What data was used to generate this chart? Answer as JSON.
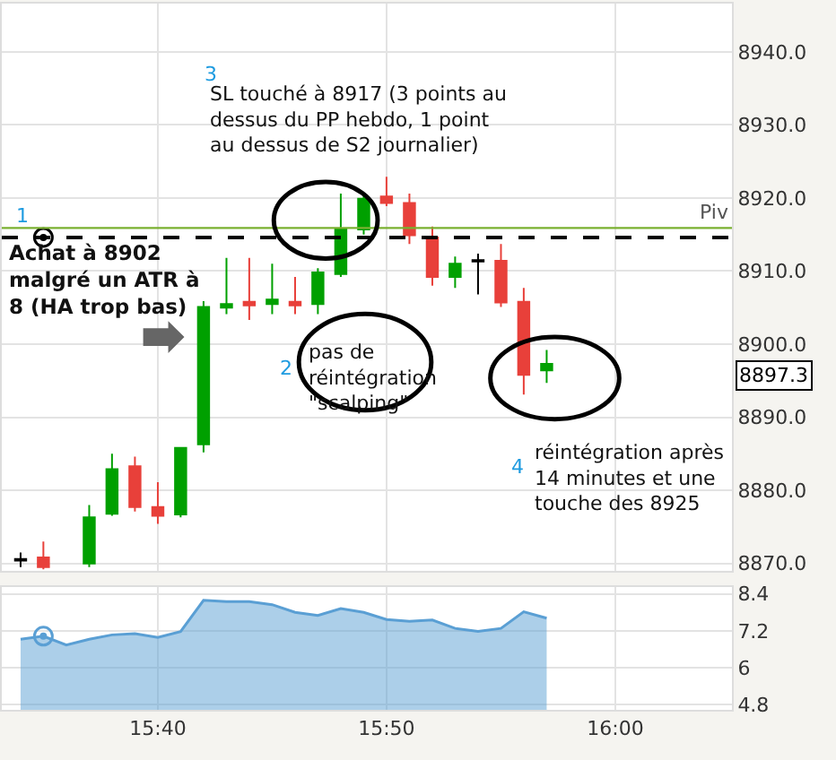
{
  "chart_data": [
    {
      "type": "candlestick",
      "x": [
        15.5667,
        15.5833,
        15.6167,
        15.6333,
        15.65,
        15.6667,
        15.6833,
        15.7,
        15.7167,
        15.7333,
        15.75,
        15.7667,
        15.7833,
        15.8,
        15.8167,
        15.8333,
        15.85,
        15.8667,
        15.8833,
        15.9,
        15.9167,
        15.9333,
        15.95
      ],
      "ohlc": [
        [
          8870.4,
          8871.5,
          8869.5,
          8870.6
        ],
        [
          8870.8,
          8873.0,
          8869.2,
          8869.5
        ],
        [
          8870.0,
          8878.0,
          8869.5,
          8876.3
        ],
        [
          8876.8,
          8885.0,
          8876.5,
          8882.9
        ],
        [
          8883.3,
          8884.6,
          8877.1,
          8877.7
        ],
        [
          8877.7,
          8881.1,
          8875.4,
          8876.5
        ],
        [
          8876.7,
          8885.8,
          8876.3,
          8885.8
        ],
        [
          8886.3,
          8905.9,
          8885.2,
          8905.1
        ],
        [
          8905.0,
          8911.8,
          8904.1,
          8905.5
        ],
        [
          8905.8,
          8911.8,
          8903.3,
          8905.3
        ],
        [
          8905.5,
          8911.0,
          8904.1,
          8906.1
        ],
        [
          8905.8,
          8909.2,
          8904.1,
          8905.3
        ],
        [
          8905.5,
          8910.4,
          8904.1,
          8909.8
        ],
        [
          8909.6,
          8920.6,
          8909.2,
          8915.7
        ],
        [
          8915.7,
          8920.6,
          8915.0,
          8919.9
        ],
        [
          8920.2,
          8922.9,
          8918.9,
          8919.3
        ],
        [
          8919.3,
          8920.6,
          8913.7,
          8914.9
        ],
        [
          8914.6,
          8916.1,
          8908.0,
          8909.2
        ],
        [
          8909.2,
          8912.0,
          8907.7,
          8911.0
        ],
        [
          8911.3,
          8912.4,
          8906.8,
          8911.5
        ],
        [
          8911.4,
          8913.7,
          8905.1,
          8905.7
        ],
        [
          8905.8,
          8907.7,
          8893.1,
          8895.8
        ],
        [
          8896.4,
          8899.2,
          8894.7,
          8897.3
        ]
      ],
      "colors": [
        "#000000",
        "#e8403a",
        "#00a000",
        "#00a000",
        "#e8403a",
        "#e8403a",
        "#00a000",
        "#00a000",
        "#00a000",
        "#e8403a",
        "#00a000",
        "#e8403a",
        "#00a000",
        "#00a000",
        "#00a000",
        "#e8403a",
        "#e8403a",
        "#e8403a",
        "#00a000",
        "#000000",
        "#e8403a",
        "#e8403a",
        "#00a000"
      ],
      "series": [
        {
          "type": "scatter",
          "x": [
            15.5833
          ],
          "values": [
            8914.6
          ],
          "color": "#000000",
          "marker": "circle"
        }
      ],
      "xlim": [
        15.553,
        16.085
      ],
      "xticks": [
        {
          "value": 15.6667,
          "label": null
        },
        {
          "value": 15.8333,
          "label": null
        },
        {
          "value": 16.0,
          "label": null
        }
      ],
      "ylim": [
        8869.0,
        8946.6
      ],
      "yticks": [
        {
          "value": 8870,
          "label": "8870.0"
        },
        {
          "value": 8880,
          "label": "8880.0"
        },
        {
          "value": 8890,
          "label": "8890.0"
        },
        {
          "value": 8900,
          "label": "8900.0"
        },
        {
          "value": 8910,
          "label": "8910.0"
        },
        {
          "value": 8920,
          "label": "8920.0"
        },
        {
          "value": 8930,
          "label": "8930.0"
        },
        {
          "value": 8940,
          "label": "8940.0"
        }
      ],
      "tick_labels": "y",
      "grid": true,
      "ref_lines": [
        {
          "axis": "y",
          "value": 8915.9,
          "label": "Piv",
          "color": "#7ab030",
          "line_style": "solid"
        },
        {
          "axis": "y",
          "value": 8914.6,
          "color": "#000000",
          "line_style": "dashed"
        }
      ],
      "annotations": [
        "1",
        "Achat à 8902\nmalgré un ATR à\n8 (HA trop bas)",
        "2",
        "pas de\nréintégration\n\"scalping\"",
        "3",
        "SL touché à 8917 (3 points au\ndessus du PP hebdo, 1 point\nau dessus de S2 journalier)",
        "4",
        "réintégration après\n14 minutes et une\ntouche des 8925",
        "8897.3"
      ]
    },
    {
      "type": "area",
      "x": [
        15.5667,
        15.5833,
        15.6,
        15.6167,
        15.6333,
        15.65,
        15.6667,
        15.6833,
        15.7,
        15.7167,
        15.7333,
        15.75,
        15.7667,
        15.7833,
        15.8,
        15.8167,
        15.8333,
        15.85,
        15.8667,
        15.8833,
        15.9,
        15.9167,
        15.9333,
        15.95
      ],
      "series": [
        {
          "type": "area",
          "color": "#5a9fd4",
          "values": [
            6.93,
            7.03,
            6.74,
            6.93,
            7.07,
            7.11,
            6.99,
            7.18,
            8.19,
            8.15,
            8.15,
            8.05,
            7.8,
            7.7,
            7.92,
            7.8,
            7.57,
            7.51,
            7.55,
            7.28,
            7.18,
            7.28,
            7.82,
            7.61
          ]
        },
        {
          "type": "scatter",
          "x": [
            15.5833
          ],
          "values": [
            7.03
          ],
          "color": "#5a9fd4",
          "marker": "circle"
        }
      ],
      "xlim": [
        15.553,
        16.085
      ],
      "xticks": [
        {
          "value": 15.6667,
          "label": "15:40"
        },
        {
          "value": 15.8333,
          "label": "15:50"
        },
        {
          "value": 16.0,
          "label": "16:00"
        }
      ],
      "ylim": [
        4.64,
        8.63
      ],
      "yticks": [
        4.8,
        6,
        7.2,
        8.4
      ],
      "grid": true
    }
  ]
}
